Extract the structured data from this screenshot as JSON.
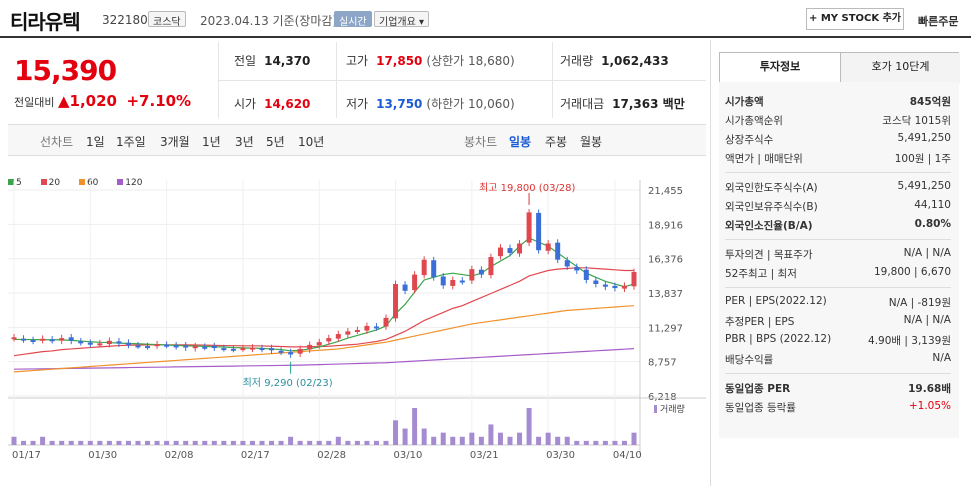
{
  "header": {
    "name": "티라유텍",
    "code": "322180",
    "market_badge": "코스닥",
    "date_text": "2023.04.13 기준(장마감)",
    "realtime_badge": "실시간",
    "company_badge": "기업개요 ▾",
    "mystock_label": "+ MY STOCK 추가",
    "quick_order": "빠른주문"
  },
  "price": {
    "current": "15,390",
    "change_label": "전일대비",
    "change_arrow": "▲",
    "change_value": "1,020",
    "change_pct": "+7.10%"
  },
  "stats": {
    "prev_label": "전일",
    "prev": "14,370",
    "high_label": "고가",
    "high": "17,850",
    "upper_limit": "(상한가 18,680)",
    "volume_label": "거래량",
    "volume": "1,062,433",
    "open_label": "시가",
    "open": "14,620",
    "low_label": "저가",
    "low": "13,750",
    "lower_limit": "(하한가 10,060)",
    "amount_label": "거래대금",
    "amount": "17,363 백만"
  },
  "tabs": {
    "line": [
      "선차트",
      "1일",
      "1주일",
      "3개월",
      "1년",
      "3년",
      "5년",
      "10년"
    ],
    "candle": [
      "봉차트",
      "일봉",
      "주봉",
      "월봉"
    ]
  },
  "legend": [
    {
      "label": "5",
      "color": "#3aa54a"
    },
    {
      "label": "20",
      "color": "#e0484f"
    },
    {
      "label": "60",
      "color": "#f0922b"
    },
    {
      "label": "120",
      "color": "#a45cc8"
    }
  ],
  "right": {
    "tab_active": "투자정보",
    "tab_inactive": "호가 10단계",
    "rows1": [
      {
        "l": "시가총액",
        "r": "845억원",
        "bold": true
      },
      {
        "l": "시가총액순위",
        "r": "코스닥 1015위"
      },
      {
        "l": "상장주식수",
        "r": "5,491,250"
      },
      {
        "l": "액면가 | 매매단위",
        "r": "100원 | 1주"
      }
    ],
    "rows2": [
      {
        "l": "외국인한도주식수(A)",
        "r": "5,491,250"
      },
      {
        "l": "외국인보유주식수(B)",
        "r": "44,110"
      },
      {
        "l": "외국인소진율(B/A)",
        "r": "0.80%",
        "bold": true
      }
    ],
    "rows3": [
      {
        "l": "투자의견 | 목표주가",
        "r": "N/A | N/A"
      },
      {
        "l": "52주최고 | 최저",
        "r": "19,800 | 6,670"
      }
    ],
    "rows4": [
      {
        "l": "PER | EPS(2022.12)",
        "r": "N/A | -819원"
      },
      {
        "l": "추정PER | EPS",
        "r": "N/A | N/A"
      },
      {
        "l": "PBR | BPS (2022.12)",
        "r": "4.90배 | 3,139원"
      },
      {
        "l": "배당수익률",
        "r": "N/A"
      }
    ],
    "rows5": [
      {
        "l": "동일업종 PER",
        "r": "19.68배",
        "bold": true
      },
      {
        "l": "동일업종 등락률",
        "r": "+1.05%",
        "red": true
      }
    ]
  },
  "chart_data": {
    "type": "candlestick",
    "y_ticks": [
      "21,455",
      "18,916",
      "16,376",
      "13,837",
      "11,297",
      "8,757",
      "6,218"
    ],
    "ylim": [
      6218,
      21455
    ],
    "x_ticks": [
      "01/17",
      "01/30",
      "02/08",
      "02/17",
      "02/28",
      "03/10",
      "03/21",
      "03/30",
      "04/10"
    ],
    "annotations": [
      {
        "text": "최고 19,800 (03/28)",
        "value": 19800
      },
      {
        "text": "최저 9,290 (02/23)",
        "value": 9290
      }
    ],
    "volume_label": "거래량",
    "close_series": [
      10500,
      10400,
      10300,
      10450,
      10350,
      10500,
      10300,
      10200,
      10050,
      10100,
      10300,
      10100,
      10000,
      9950,
      9900,
      10050,
      10000,
      9900,
      9800,
      9900,
      9850,
      9800,
      9750,
      9700,
      9750,
      9800,
      9700,
      9600,
      9500,
      9290,
      9700,
      10000,
      10200,
      10500,
      10800,
      11000,
      11100,
      11400,
      11300,
      12000,
      14500,
      14000,
      15200,
      16300,
      15000,
      14400,
      14800,
      14700,
      15600,
      15200,
      16500,
      17200,
      16800,
      17500,
      19800,
      17000,
      17500,
      16300,
      15800,
      15500,
      14800,
      14500,
      14300,
      14200,
      14370,
      15390
    ],
    "ma5": [
      10400,
      10400,
      10390,
      10380,
      10380,
      10370,
      10330,
      10280,
      10230,
      10190,
      10170,
      10130,
      10100,
      10080,
      10050,
      10020,
      9990,
      9960,
      9930,
      9910,
      9890,
      9860,
      9840,
      9800,
      9780,
      9760,
      9740,
      9700,
      9650,
      9560,
      9600,
      9700,
      9850,
      10050,
      10250,
      10500,
      10700,
      10900,
      11100,
      11400,
      12300,
      13000,
      13900,
      14800,
      15000,
      15200,
      15300,
      15200,
      15100,
      15300,
      15800,
      16200,
      16600,
      17300,
      17900,
      17600,
      17300,
      16800,
      16300,
      15800,
      15300,
      15000,
      14700,
      14500,
      14300,
      14500
    ],
    "ma20": [
      9200,
      9300,
      9400,
      9500,
      9550,
      9650,
      9700,
      9750,
      9800,
      9850,
      9900,
      9950,
      9970,
      9990,
      10000,
      10000,
      10000,
      10000,
      10000,
      9990,
      9980,
      9960,
      9950,
      9940,
      9930,
      9930,
      9920,
      9900,
      9880,
      9850,
      9850,
      9860,
      9880,
      9900,
      9950,
      10000,
      10050,
      10150,
      10250,
      10400,
      10700,
      11000,
      11400,
      11800,
      12100,
      12400,
      12700,
      12900,
      13200,
      13500,
      13800,
      14100,
      14400,
      14700,
      15100,
      15300,
      15500,
      15600,
      15650,
      15700,
      15700,
      15650,
      15600,
      15550,
      15500,
      15500
    ],
    "ma60": [
      8000,
      8050,
      8100,
      8150,
      8200,
      8250,
      8300,
      8350,
      8400,
      8450,
      8500,
      8550,
      8600,
      8650,
      8700,
      8750,
      8800,
      8850,
      8900,
      8950,
      9000,
      9050,
      9100,
      9150,
      9200,
      9250,
      9300,
      9350,
      9400,
      9450,
      9500,
      9550,
      9600,
      9650,
      9700,
      9800,
      9900,
      10000,
      10100,
      10200,
      10350,
      10500,
      10650,
      10800,
      10950,
      11100,
      11250,
      11400,
      11550,
      11650,
      11750,
      11850,
      11950,
      12050,
      12150,
      12250,
      12350,
      12450,
      12550,
      12600,
      12650,
      12700,
      12750,
      12800,
      12850,
      12900
    ],
    "ma120": [
      8200,
      8210,
      8220,
      8230,
      8240,
      8250,
      8260,
      8270,
      8280,
      8290,
      8300,
      8310,
      8320,
      8330,
      8340,
      8350,
      8360,
      8370,
      8380,
      8390,
      8400,
      8410,
      8420,
      8430,
      8440,
      8450,
      8460,
      8470,
      8480,
      8490,
      8500,
      8520,
      8540,
      8560,
      8580,
      8600,
      8620,
      8640,
      8660,
      8680,
      8720,
      8760,
      8800,
      8840,
      8880,
      8920,
      8960,
      9000,
      9040,
      9080,
      9120,
      9160,
      9200,
      9240,
      9280,
      9320,
      9360,
      9400,
      9440,
      9480,
      9520,
      9560,
      9600,
      9640,
      9680,
      9720
    ],
    "volume": [
      2,
      1,
      1,
      2,
      1,
      1,
      1,
      1,
      1,
      1,
      1,
      1,
      1,
      1,
      1,
      1,
      1,
      1,
      1,
      1,
      1,
      1,
      1,
      1,
      1,
      1,
      1,
      1,
      1,
      2,
      1,
      1,
      1,
      1,
      2,
      1,
      1,
      1,
      1,
      1,
      6,
      4,
      9,
      4,
      2,
      3,
      2,
      2,
      3,
      2,
      5,
      3,
      2,
      3,
      9,
      2,
      3,
      2,
      2,
      1,
      1,
      1,
      1,
      1,
      1,
      3
    ]
  }
}
